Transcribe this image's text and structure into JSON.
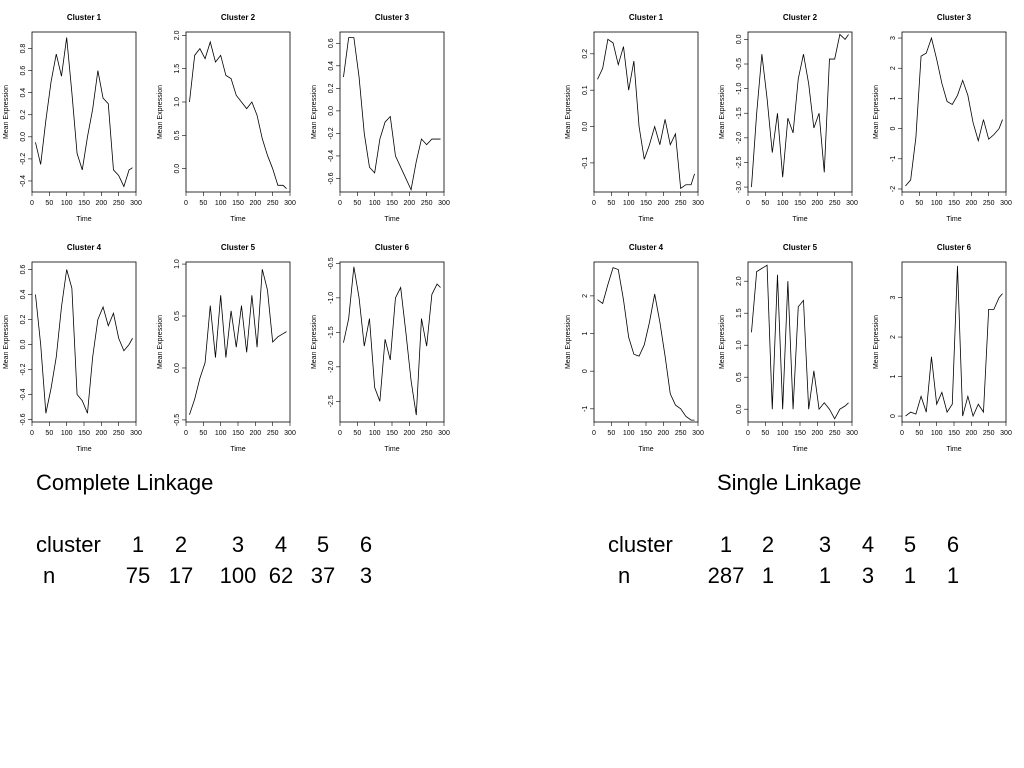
{
  "chart_data": [
    {
      "type": "line",
      "title": "Cluster 1",
      "xlabel": "Time",
      "ylabel": "Mean Expression",
      "color": "#000000",
      "x": [
        10,
        25,
        40,
        55,
        70,
        85,
        100,
        115,
        130,
        145,
        160,
        175,
        190,
        205,
        220,
        235,
        250,
        265,
        280,
        290
      ],
      "values": [
        -0.05,
        -0.25,
        0.15,
        0.5,
        0.75,
        0.55,
        0.9,
        0.4,
        -0.15,
        -0.3,
        0.0,
        0.25,
        0.6,
        0.35,
        0.3,
        -0.3,
        -0.35,
        -0.45,
        -0.3,
        -0.28
      ],
      "xlim": [
        0,
        300
      ],
      "ylim": [
        -0.5,
        0.95
      ],
      "xticks": [
        0,
        50,
        100,
        150,
        200,
        250,
        300
      ],
      "yticks": [
        -0.4,
        -0.2,
        {
          "value": 0,
          "label": "0.0"
        },
        0.2,
        0.4,
        0.6,
        0.8
      ]
    },
    {
      "type": "line",
      "title": "Cluster 2",
      "xlabel": "Time",
      "ylabel": "Mean Expression",
      "color": "#000000",
      "x": [
        10,
        25,
        40,
        55,
        70,
        85,
        100,
        115,
        130,
        145,
        160,
        175,
        190,
        205,
        220,
        235,
        250,
        265,
        280,
        290
      ],
      "values": [
        1.0,
        1.7,
        1.8,
        1.65,
        1.9,
        1.6,
        1.7,
        1.4,
        1.35,
        1.1,
        1.0,
        0.9,
        1.0,
        0.8,
        0.45,
        0.2,
        0.0,
        -0.25,
        -0.25,
        -0.3
      ],
      "xlim": [
        0,
        300
      ],
      "ylim": [
        -0.35,
        2.05
      ],
      "xticks": [
        0,
        50,
        100,
        150,
        200,
        250,
        300
      ],
      "yticks": [
        {
          "value": 0,
          "label": "0.0"
        },
        0.5,
        {
          "value": 1,
          "label": "1.0"
        },
        1.5,
        {
          "value": 2,
          "label": "2.0"
        }
      ]
    },
    {
      "type": "line",
      "title": "Cluster 3",
      "xlabel": "Time",
      "ylabel": "Mean Expression",
      "color": "#000000",
      "x": [
        10,
        25,
        40,
        55,
        70,
        85,
        100,
        115,
        130,
        145,
        160,
        175,
        190,
        205,
        220,
        235,
        250,
        265,
        280,
        290
      ],
      "values": [
        0.3,
        0.65,
        0.65,
        0.3,
        -0.2,
        -0.5,
        -0.55,
        -0.25,
        -0.1,
        -0.05,
        -0.4,
        -0.5,
        -0.6,
        -0.7,
        -0.45,
        -0.25,
        -0.3,
        -0.25,
        -0.25,
        -0.25
      ],
      "xlim": [
        0,
        300
      ],
      "ylim": [
        -0.72,
        0.7
      ],
      "xticks": [
        0,
        50,
        100,
        150,
        200,
        250,
        300
      ],
      "yticks": [
        -0.6,
        -0.4,
        -0.2,
        {
          "value": 0,
          "label": "0.0"
        },
        0.2,
        0.4,
        0.6
      ]
    },
    {
      "type": "line",
      "title": "Cluster 4",
      "xlabel": "Time",
      "ylabel": "Mean Expression",
      "color": "#000000",
      "x": [
        10,
        25,
        40,
        55,
        70,
        85,
        100,
        115,
        130,
        145,
        160,
        175,
        190,
        205,
        220,
        235,
        250,
        265,
        280,
        290
      ],
      "values": [
        0.4,
        0.0,
        -0.55,
        -0.35,
        -0.1,
        0.3,
        0.6,
        0.45,
        -0.4,
        -0.45,
        -0.55,
        -0.1,
        0.2,
        0.3,
        0.15,
        0.25,
        0.05,
        -0.05,
        0.0,
        0.05
      ],
      "xlim": [
        0,
        300
      ],
      "ylim": [
        -0.62,
        0.66
      ],
      "xticks": [
        0,
        50,
        100,
        150,
        200,
        250,
        300
      ],
      "yticks": [
        -0.6,
        -0.4,
        -0.2,
        {
          "value": 0,
          "label": "0.0"
        },
        0.2,
        0.4,
        0.6
      ]
    },
    {
      "type": "line",
      "title": "Cluster 5",
      "xlabel": "Time",
      "ylabel": "Mean Expression",
      "color": "#000000",
      "x": [
        10,
        25,
        40,
        55,
        70,
        85,
        100,
        115,
        130,
        145,
        160,
        175,
        190,
        205,
        220,
        235,
        250,
        265,
        280,
        290
      ],
      "values": [
        -0.45,
        -0.3,
        -0.1,
        0.05,
        0.6,
        0.1,
        0.7,
        0.1,
        0.55,
        0.2,
        0.6,
        0.15,
        0.7,
        0.2,
        0.95,
        0.75,
        0.25,
        0.3,
        0.33,
        0.35
      ],
      "xlim": [
        0,
        300
      ],
      "ylim": [
        -0.52,
        1.02
      ],
      "xticks": [
        0,
        50,
        100,
        150,
        200,
        250,
        300
      ],
      "yticks": [
        -0.5,
        {
          "value": 0,
          "label": "0.0"
        },
        0.5,
        {
          "value": 1,
          "label": "1.0"
        }
      ]
    },
    {
      "type": "line",
      "title": "Cluster 6",
      "xlabel": "Time",
      "ylabel": "Mean Expression",
      "color": "#000000",
      "x": [
        10,
        25,
        40,
        55,
        70,
        85,
        100,
        115,
        130,
        145,
        160,
        175,
        190,
        205,
        220,
        235,
        250,
        265,
        280,
        290
      ],
      "values": [
        -1.65,
        -1.3,
        -0.55,
        -1.0,
        -1.7,
        -1.3,
        -2.3,
        -2.5,
        -1.6,
        -1.9,
        -1.0,
        -0.85,
        -1.5,
        -2.2,
        -2.7,
        -1.3,
        -1.7,
        -0.95,
        -0.8,
        -0.85
      ],
      "xlim": [
        0,
        300
      ],
      "ylim": [
        -2.8,
        -0.48
      ],
      "xticks": [
        0,
        50,
        100,
        150,
        200,
        250,
        300
      ],
      "yticks": [
        -2.5,
        {
          "value": -2,
          "label": "-2.0"
        },
        -1.5,
        {
          "value": -1,
          "label": "-1.0"
        },
        -0.5
      ]
    },
    {
      "type": "line",
      "title": "Cluster 1",
      "xlabel": "Time",
      "ylabel": "Mean Expression",
      "color": "#000000",
      "x": [
        10,
        25,
        40,
        55,
        70,
        85,
        100,
        115,
        130,
        145,
        160,
        175,
        190,
        205,
        220,
        235,
        250,
        265,
        280,
        290
      ],
      "values": [
        0.13,
        0.16,
        0.24,
        0.23,
        0.17,
        0.22,
        0.1,
        0.18,
        0.0,
        -0.09,
        -0.05,
        0.0,
        -0.05,
        0.02,
        -0.05,
        -0.02,
        -0.17,
        -0.16,
        -0.16,
        -0.13
      ],
      "xlim": [
        0,
        300
      ],
      "ylim": [
        -0.18,
        0.26
      ],
      "xticks": [
        0,
        50,
        100,
        150,
        200,
        250,
        300
      ],
      "yticks": [
        -0.1,
        {
          "value": 0,
          "label": "0.0"
        },
        0.1,
        0.2
      ]
    },
    {
      "type": "line",
      "title": "Cluster 2",
      "xlabel": "Time",
      "ylabel": "Mean Expression",
      "color": "#000000",
      "x": [
        10,
        25,
        40,
        55,
        70,
        85,
        100,
        115,
        130,
        145,
        160,
        175,
        190,
        205,
        220,
        235,
        250,
        265,
        280,
        290
      ],
      "values": [
        -3.0,
        -1.5,
        -0.3,
        -1.2,
        -2.3,
        -1.5,
        -2.8,
        -1.6,
        -1.9,
        -0.8,
        -0.3,
        -0.9,
        -1.8,
        -1.5,
        -2.7,
        -0.4,
        -0.4,
        0.1,
        0.0,
        0.1
      ],
      "xlim": [
        0,
        300
      ],
      "ylim": [
        -3.1,
        0.15
      ],
      "xticks": [
        0,
        50,
        100,
        150,
        200,
        250,
        300
      ],
      "yticks": [
        {
          "value": -3,
          "label": "-3.0"
        },
        -2.5,
        {
          "value": -2,
          "label": "-2.0"
        },
        -1.5,
        {
          "value": -1,
          "label": "-1.0"
        },
        -0.5,
        {
          "value": 0,
          "label": "0.0"
        }
      ]
    },
    {
      "type": "line",
      "title": "Cluster 3",
      "xlabel": "Time",
      "ylabel": "Mean Expression",
      "color": "#000000",
      "x": [
        10,
        25,
        40,
        55,
        70,
        85,
        100,
        115,
        130,
        145,
        160,
        175,
        190,
        205,
        220,
        235,
        250,
        265,
        280,
        290
      ],
      "values": [
        -1.9,
        -1.7,
        -0.3,
        2.4,
        2.5,
        3.0,
        2.3,
        1.5,
        0.9,
        0.8,
        1.1,
        1.6,
        1.1,
        0.2,
        -0.4,
        0.3,
        -0.35,
        -0.2,
        0.0,
        0.3
      ],
      "xlim": [
        0,
        300
      ],
      "ylim": [
        -2.1,
        3.2
      ],
      "xticks": [
        0,
        50,
        100,
        150,
        200,
        250,
        300
      ],
      "yticks": [
        -2,
        -1,
        0,
        1,
        2,
        3
      ]
    },
    {
      "type": "line",
      "title": "Cluster 4",
      "xlabel": "Time",
      "ylabel": "Mean Expression",
      "color": "#000000",
      "x": [
        10,
        25,
        40,
        55,
        70,
        85,
        100,
        115,
        130,
        145,
        160,
        175,
        190,
        205,
        220,
        235,
        250,
        265,
        280,
        290
      ],
      "values": [
        1.9,
        1.8,
        2.3,
        2.75,
        2.7,
        1.9,
        0.9,
        0.45,
        0.4,
        0.7,
        1.3,
        2.05,
        1.3,
        0.4,
        -0.6,
        -0.9,
        -1.0,
        -1.2,
        -1.3,
        -1.3
      ],
      "xlim": [
        0,
        300
      ],
      "ylim": [
        -1.35,
        2.9
      ],
      "xticks": [
        0,
        50,
        100,
        150,
        200,
        250,
        300
      ],
      "yticks": [
        -1,
        0,
        1,
        2
      ]
    },
    {
      "type": "line",
      "title": "Cluster 5",
      "xlabel": "Time",
      "ylabel": "Mean Expression",
      "color": "#000000",
      "x": [
        10,
        25,
        40,
        55,
        70,
        85,
        100,
        115,
        130,
        145,
        160,
        175,
        190,
        205,
        220,
        235,
        250,
        265,
        280,
        290
      ],
      "values": [
        1.2,
        2.15,
        2.2,
        2.25,
        0.0,
        2.1,
        0.0,
        2.0,
        0.0,
        1.6,
        1.7,
        0.0,
        0.6,
        0.0,
        0.1,
        0.0,
        -0.15,
        0.0,
        0.05,
        0.1
      ],
      "xlim": [
        0,
        300
      ],
      "ylim": [
        -0.2,
        2.3
      ],
      "xticks": [
        0,
        50,
        100,
        150,
        200,
        250,
        300
      ],
      "yticks": [
        {
          "value": 0,
          "label": "0.0"
        },
        0.5,
        {
          "value": 1,
          "label": "1.0"
        },
        1.5,
        {
          "value": 2,
          "label": "2.0"
        }
      ]
    },
    {
      "type": "line",
      "title": "Cluster 6",
      "xlabel": "Time",
      "ylabel": "Mean Expression",
      "color": "#000000",
      "x": [
        10,
        25,
        40,
        55,
        70,
        85,
        100,
        115,
        130,
        145,
        160,
        175,
        190,
        205,
        220,
        235,
        250,
        265,
        280,
        290
      ],
      "values": [
        0.0,
        0.1,
        0.05,
        0.5,
        0.1,
        1.5,
        0.3,
        0.6,
        0.1,
        0.3,
        3.8,
        0.0,
        0.5,
        0.0,
        0.3,
        0.1,
        2.7,
        2.7,
        3.0,
        3.1
      ],
      "xlim": [
        0,
        300
      ],
      "ylim": [
        -0.15,
        3.9
      ],
      "xticks": [
        0,
        50,
        100,
        150,
        200,
        250,
        300
      ],
      "yticks": [
        0,
        1,
        2,
        3
      ]
    }
  ],
  "tables": [
    {
      "title": "Complete Linkage",
      "header": [
        "cluster",
        1,
        2,
        3,
        4,
        5,
        6
      ],
      "rows": [
        [
          "n",
          75,
          17,
          100,
          62,
          37,
          3
        ]
      ]
    },
    {
      "title": "Single Linkage",
      "header": [
        "cluster",
        1,
        2,
        3,
        4,
        5,
        6
      ],
      "rows": [
        [
          "n",
          287,
          1,
          1,
          3,
          1,
          1
        ]
      ]
    }
  ]
}
